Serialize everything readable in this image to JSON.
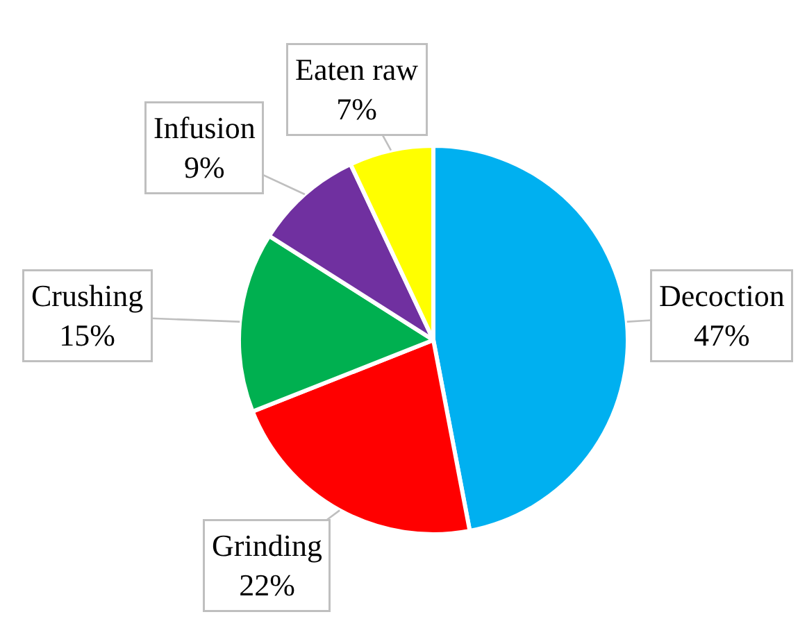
{
  "chart_data": {
    "type": "pie",
    "categories": [
      "Decoction",
      "Grinding",
      "Crushing",
      "Infusion",
      "Eaten raw"
    ],
    "values": [
      47,
      22,
      15,
      9,
      7
    ],
    "value_labels": [
      "47%",
      "22%",
      "15%",
      "9%",
      "7%"
    ],
    "colors": [
      "#00b0f0",
      "#ff0000",
      "#00b050",
      "#7030a0",
      "#ffff00"
    ],
    "legend": false
  }
}
